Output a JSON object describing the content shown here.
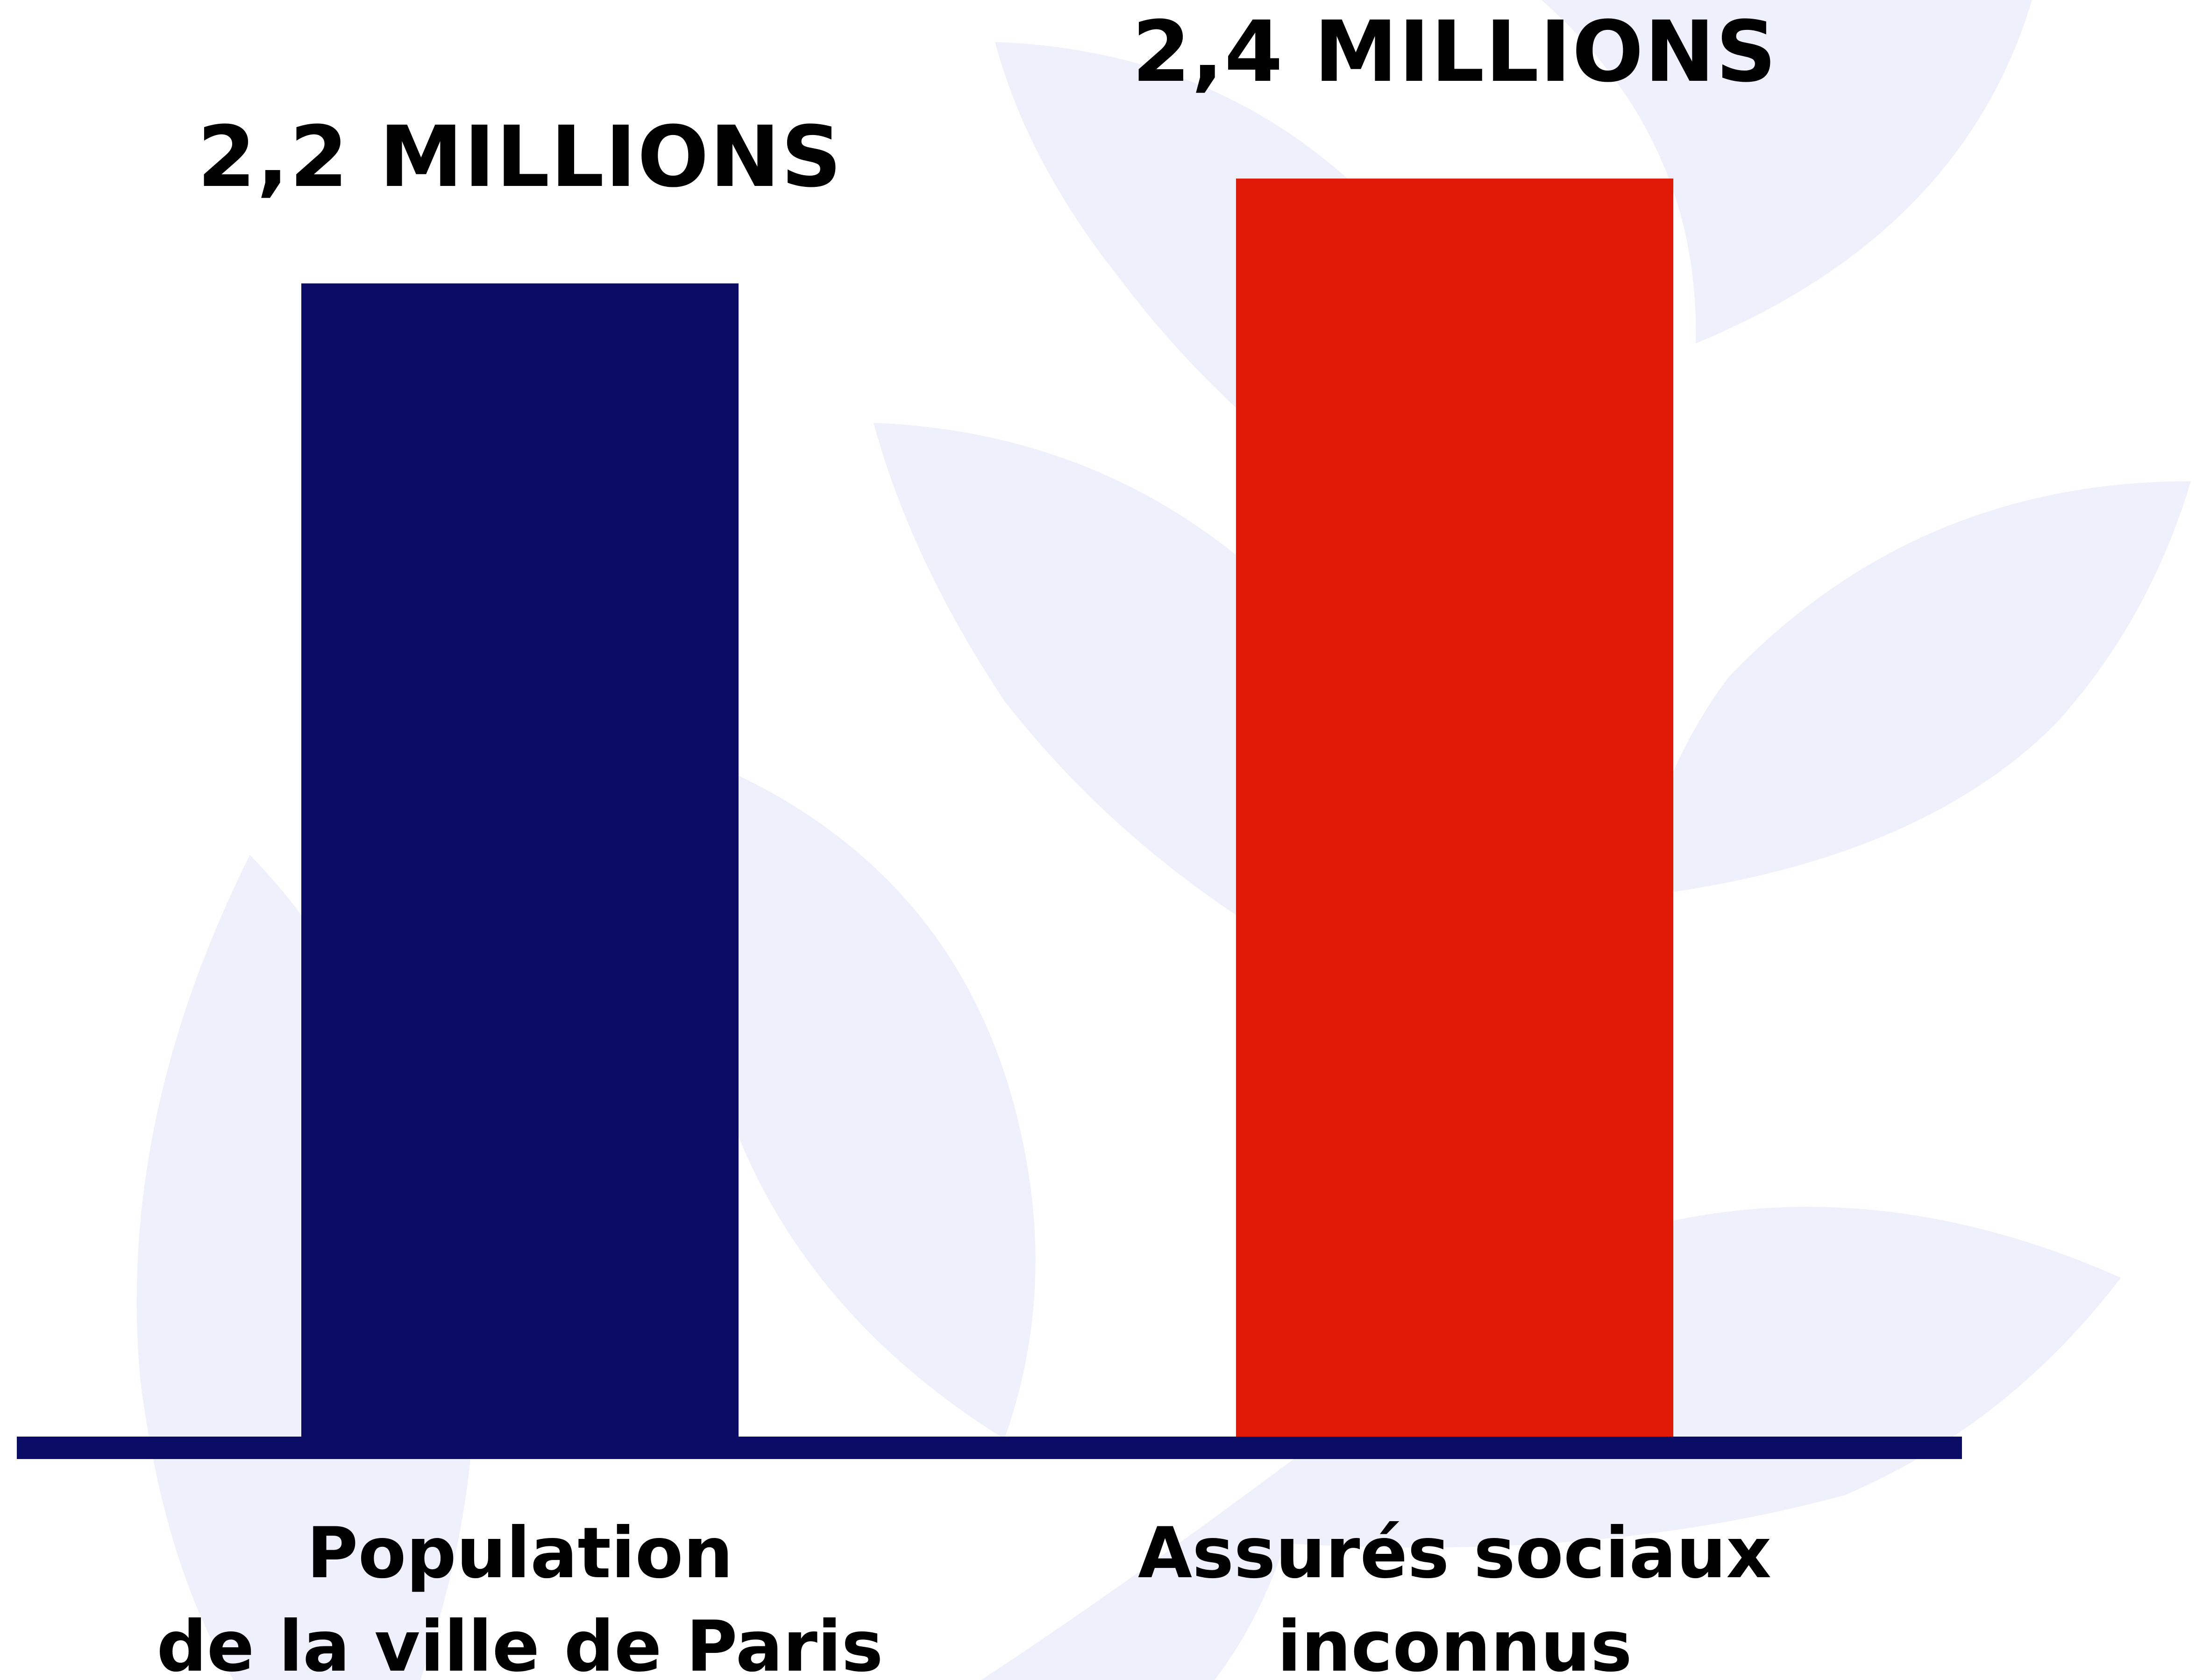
{
  "chart_data": {
    "type": "bar",
    "categories": [
      "Population\nde la ville de Paris",
      "Assurés sociaux\ninconnus"
    ],
    "values": [
      2.2,
      2.4
    ],
    "value_labels": [
      "2,2 MILLIONS",
      "2,4 MILLIONS"
    ],
    "colors": [
      "#0b0c66",
      "#e01a06"
    ],
    "axis_color": "#0b0c66"
  }
}
